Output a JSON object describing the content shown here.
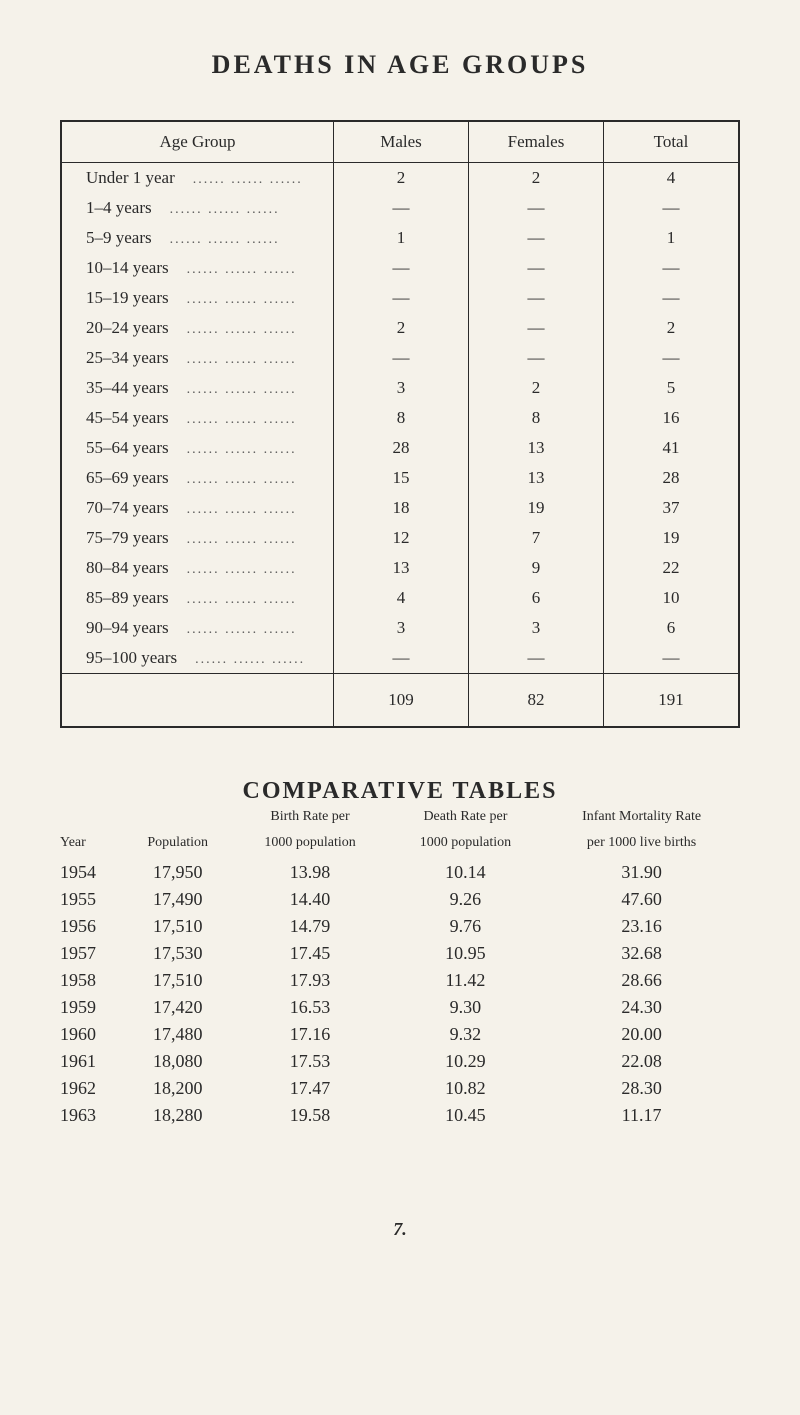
{
  "colors": {
    "background": "#f5f2ea",
    "text": "#2a2a2a",
    "border": "#2a2a2a"
  },
  "title_main": "DEATHS  IN  AGE  GROUPS",
  "deaths_table": {
    "columns": [
      "Age Group",
      "Males",
      "Females",
      "Total"
    ],
    "rows": [
      {
        "label": "Under 1 year",
        "males": "2",
        "females": "2",
        "total": "4"
      },
      {
        "label": "1–4 years",
        "males": "—",
        "females": "—",
        "total": "—"
      },
      {
        "label": "5–9 years",
        "males": "1",
        "females": "—",
        "total": "1"
      },
      {
        "label": "10–14 years",
        "males": "—",
        "females": "—",
        "total": "—"
      },
      {
        "label": "15–19 years",
        "males": "—",
        "females": "—",
        "total": "—"
      },
      {
        "label": "20–24 years",
        "males": "2",
        "females": "—",
        "total": "2"
      },
      {
        "label": "25–34 years",
        "males": "—",
        "females": "—",
        "total": "—"
      },
      {
        "label": "35–44 years",
        "males": "3",
        "females": "2",
        "total": "5"
      },
      {
        "label": "45–54 years",
        "males": "8",
        "females": "8",
        "total": "16"
      },
      {
        "label": "55–64 years",
        "males": "28",
        "females": "13",
        "total": "41"
      },
      {
        "label": "65–69 years",
        "males": "15",
        "females": "13",
        "total": "28"
      },
      {
        "label": "70–74 years",
        "males": "18",
        "females": "19",
        "total": "37"
      },
      {
        "label": "75–79 years",
        "males": "12",
        "females": "7",
        "total": "19"
      },
      {
        "label": "80–84 years",
        "males": "13",
        "females": "9",
        "total": "22"
      },
      {
        "label": "85–89 years",
        "males": "4",
        "females": "6",
        "total": "10"
      },
      {
        "label": "90–94 years",
        "males": "3",
        "females": "3",
        "total": "6"
      },
      {
        "label": "95–100 years",
        "males": "—",
        "females": "—",
        "total": "—"
      }
    ],
    "totals": {
      "males": "109",
      "females": "82",
      "total": "191"
    }
  },
  "title_comp": "COMPARATIVE TABLES",
  "comp_table": {
    "columns_top": [
      "",
      "",
      "Birth Rate per",
      "Death Rate per",
      "Infant Mortality Rate"
    ],
    "columns_bot": [
      "Year",
      "Population",
      "1000 population",
      "1000 population",
      "per 1000 live births"
    ],
    "rows": [
      {
        "year": "1954",
        "pop": "17,950",
        "birth": "13.98",
        "death": "10.14",
        "imr": "31.90"
      },
      {
        "year": "1955",
        "pop": "17,490",
        "birth": "14.40",
        "death": "9.26",
        "imr": "47.60"
      },
      {
        "year": "1956",
        "pop": "17,510",
        "birth": "14.79",
        "death": "9.76",
        "imr": "23.16"
      },
      {
        "year": "1957",
        "pop": "17,530",
        "birth": "17.45",
        "death": "10.95",
        "imr": "32.68"
      },
      {
        "year": "1958",
        "pop": "17,510",
        "birth": "17.93",
        "death": "11.42",
        "imr": "28.66"
      },
      {
        "year": "1959",
        "pop": "17,420",
        "birth": "16.53",
        "death": "9.30",
        "imr": "24.30"
      },
      {
        "year": "1960",
        "pop": "17,480",
        "birth": "17.16",
        "death": "9.32",
        "imr": "20.00"
      },
      {
        "year": "1961",
        "pop": "18,080",
        "birth": "17.53",
        "death": "10.29",
        "imr": "22.08"
      },
      {
        "year": "1962",
        "pop": "18,200",
        "birth": "17.47",
        "death": "10.82",
        "imr": "28.30"
      },
      {
        "year": "1963",
        "pop": "18,280",
        "birth": "19.58",
        "death": "10.45",
        "imr": "11.17"
      }
    ]
  },
  "page_number": "7."
}
